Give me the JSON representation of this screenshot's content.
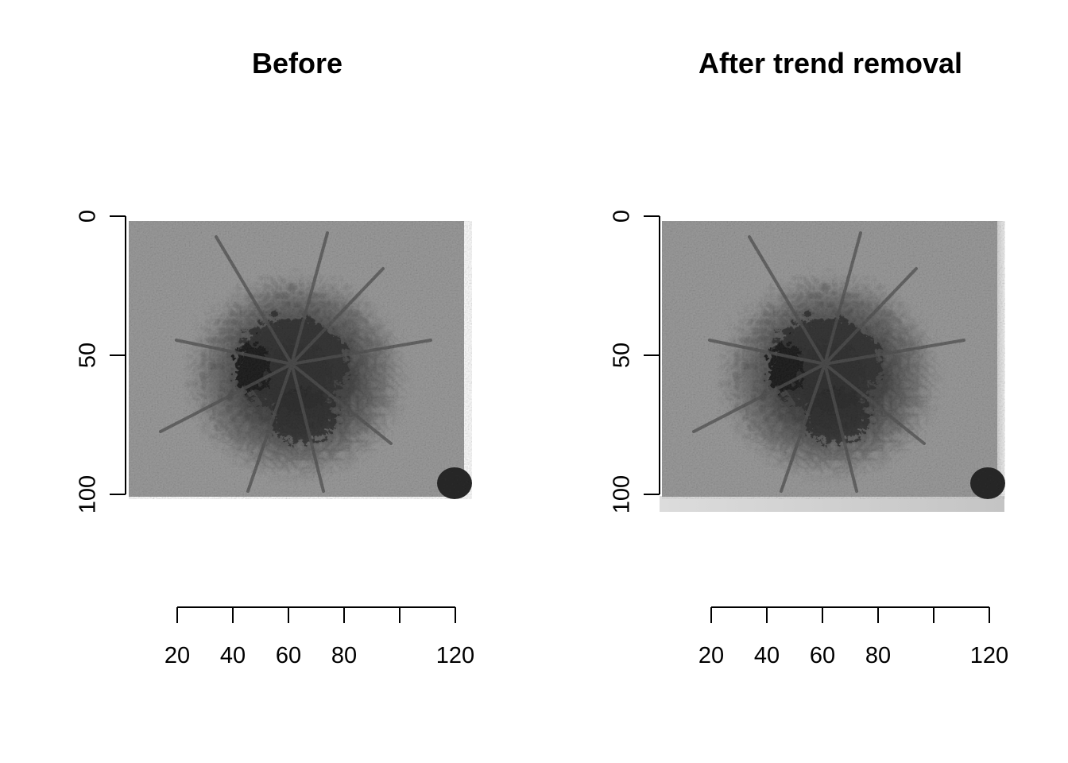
{
  "chart_data": [
    {
      "type": "image",
      "title": "Before",
      "xlabel": "",
      "ylabel": "",
      "xaxis": {
        "ticks": [
          20,
          40,
          60,
          80,
          100,
          120
        ],
        "tick_labels": [
          "20",
          "40",
          "60",
          "80",
          "",
          "120"
        ]
      },
      "yaxis": {
        "ticks": [
          0,
          50,
          100
        ],
        "tick_labels": [
          "0",
          "50",
          "100"
        ],
        "reversed": true
      },
      "image_extent": {
        "x": [
          0,
          120
        ],
        "y": [
          0,
          100
        ]
      },
      "trend_shading": false,
      "colormap": "grayscale"
    },
    {
      "type": "image",
      "title": "After trend removal",
      "xlabel": "",
      "ylabel": "",
      "xaxis": {
        "ticks": [
          20,
          40,
          60,
          80,
          100,
          120
        ],
        "tick_labels": [
          "20",
          "40",
          "60",
          "80",
          "",
          "120"
        ]
      },
      "yaxis": {
        "ticks": [
          0,
          50,
          100
        ],
        "tick_labels": [
          "0",
          "50",
          "100"
        ],
        "reversed": true
      },
      "image_extent": {
        "x": [
          0,
          120
        ],
        "y": [
          0,
          100
        ]
      },
      "trend_shading": true,
      "colormap": "grayscale"
    }
  ],
  "colors": {
    "background": "#ffffff",
    "axis": "#000000",
    "image_mid": "#9a9a9a",
    "image_dark": "#2a2a2a",
    "image_light": "#c8c8c8",
    "trend_band": "#d0d0d0"
  }
}
